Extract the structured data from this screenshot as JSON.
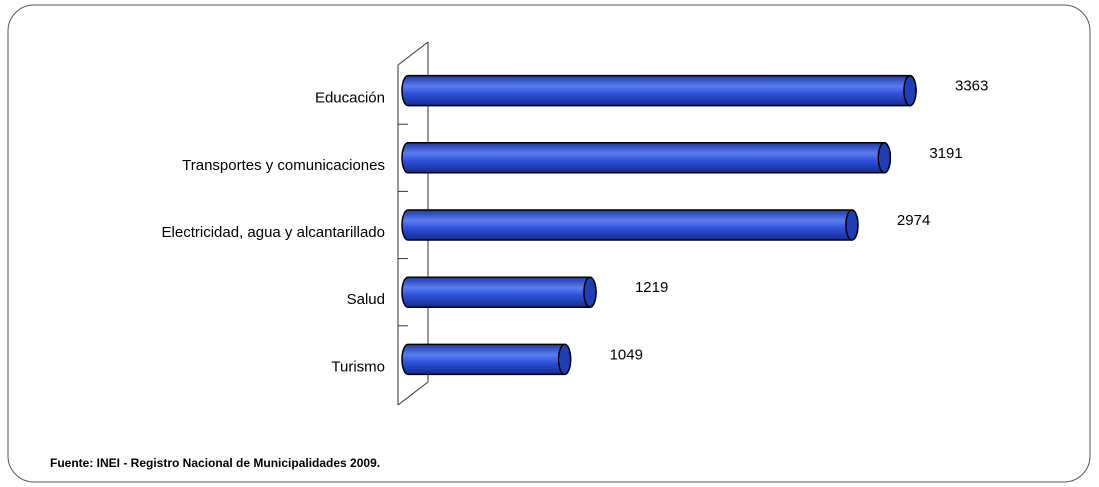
{
  "chart_data": {
    "type": "bar",
    "orientation": "horizontal",
    "categories": [
      "Educación",
      "Transportes y comunicaciones",
      "Electricidad, agua y alcantarillado",
      "Salud",
      "Turismo"
    ],
    "values": [
      3363,
      3191,
      2974,
      1219,
      1049
    ],
    "color": "#2a4fd6",
    "source": "Fuente: INEI - Registro Nacional de Municipalidades 2009."
  }
}
